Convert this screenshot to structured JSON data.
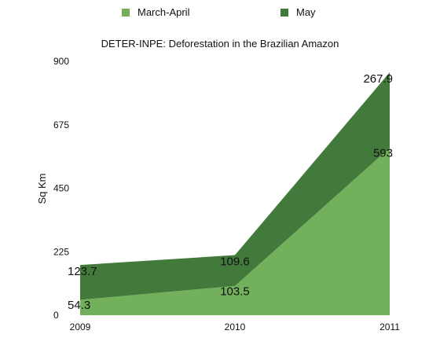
{
  "chart_data": {
    "type": "area",
    "stacked": true,
    "title": "DETER-INPE: Deforestation in the Brazilian Amazon",
    "xlabel": "",
    "ylabel": "Sq Km",
    "categories": [
      "2009",
      "2010",
      "2011"
    ],
    "ylim": [
      0,
      900
    ],
    "yticks": [
      0,
      225,
      450,
      675,
      900
    ],
    "grid": false,
    "legend_position": "top",
    "series": [
      {
        "name": "March-April",
        "values": [
          54.3,
          103.5,
          593
        ],
        "color": "#72b05c"
      },
      {
        "name": "May",
        "values": [
          123.7,
          109.6,
          267.9
        ],
        "color": "#427a3c"
      }
    ],
    "data_labels": [
      {
        "series": 0,
        "labels": [
          "54.3",
          "103.5",
          "593"
        ]
      },
      {
        "series": 1,
        "labels": [
          "123.7",
          "109.6",
          "267.9"
        ]
      }
    ]
  }
}
